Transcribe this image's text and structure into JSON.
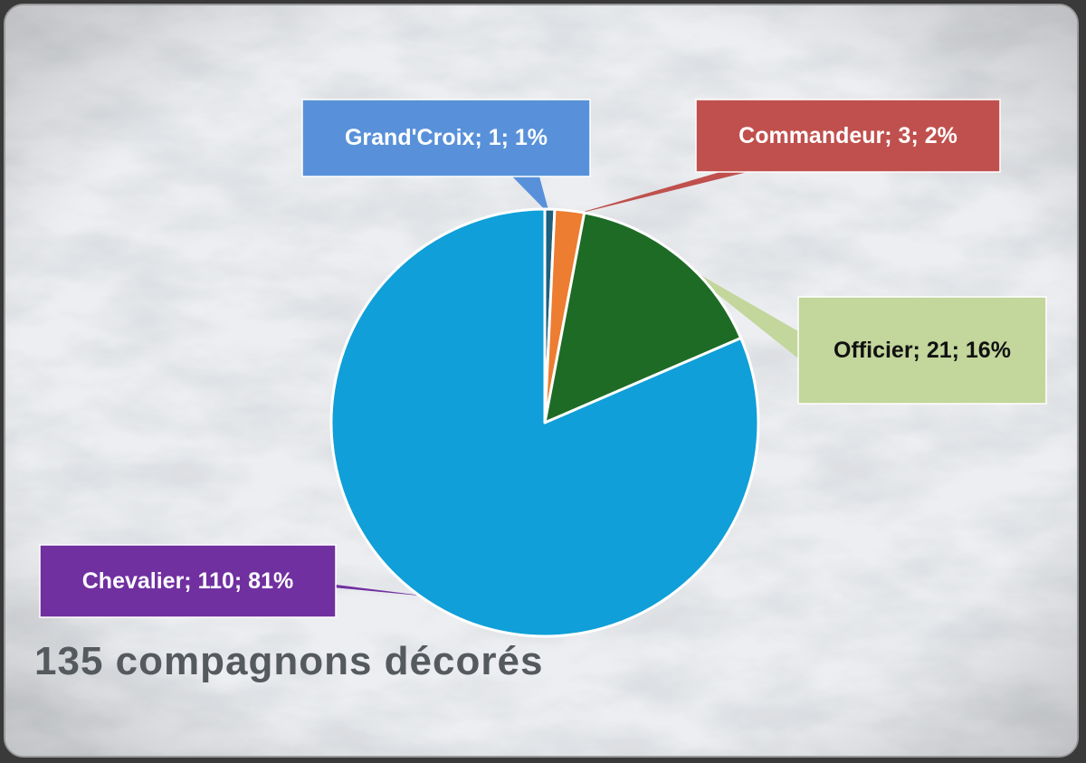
{
  "chart_data": {
    "type": "pie",
    "categories": [
      "Grand'Croix",
      "Commandeur",
      "Officier",
      "Chevalier"
    ],
    "values": [
      1,
      3,
      21,
      110
    ],
    "percentages": [
      "1%",
      "2%",
      "16%",
      "81%"
    ],
    "labels": [
      "Grand'Croix; 1; 1%",
      "Commandeur; 3; 2%",
      "Officier; 21; 16%",
      "Chevalier; 110; 81%"
    ],
    "slice_colors": [
      "#1d5f7c",
      "#ed7d31",
      "#1e6b26",
      "#109fd8"
    ],
    "label_colors": [
      "#5891d9",
      "#c0504d",
      "#c3d69b",
      "#7030a0"
    ],
    "title": "",
    "legend": "none"
  },
  "caption": "135 compagnons décorés"
}
